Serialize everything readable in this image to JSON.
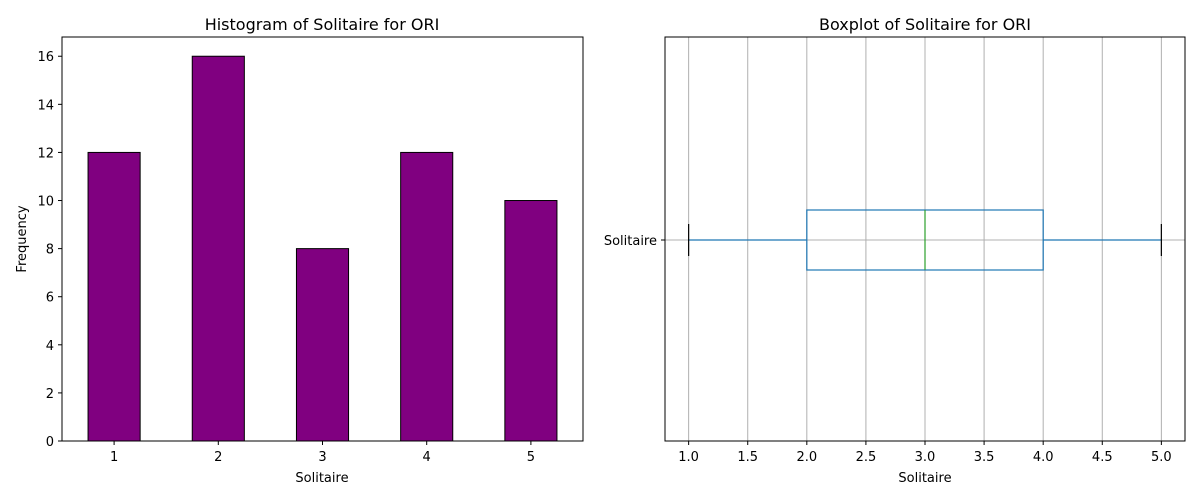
{
  "chart_data": [
    {
      "type": "bar",
      "title": "Histogram of Solitaire for ORI",
      "xlabel": "Solitaire",
      "ylabel": "Frequency",
      "categories": [
        "1",
        "2",
        "3",
        "4",
        "5"
      ],
      "values": [
        12,
        16,
        8,
        12,
        10
      ],
      "ylim": [
        0,
        16.8
      ],
      "yticks": [
        "0",
        "2",
        "4",
        "6",
        "8",
        "10",
        "12",
        "14",
        "16"
      ],
      "bar_color": "#800080",
      "edge_color": "#000000",
      "grid": false
    },
    {
      "type": "box",
      "title": "Boxplot of Solitaire for ORI",
      "xlabel": "Solitaire",
      "category_label": "Solitaire",
      "orientation": "horizontal",
      "whisker_low": 1.0,
      "q1": 2.0,
      "median": 3.0,
      "q3": 4.0,
      "whisker_high": 5.0,
      "xlim": [
        0.8,
        5.2
      ],
      "xticks": [
        "1.0",
        "1.5",
        "2.0",
        "2.5",
        "3.0",
        "3.5",
        "4.0",
        "4.5",
        "5.0"
      ],
      "box_color": "#1f77b4",
      "median_color": "#2ca02c",
      "cap_color": "#000000",
      "grid": true
    }
  ]
}
